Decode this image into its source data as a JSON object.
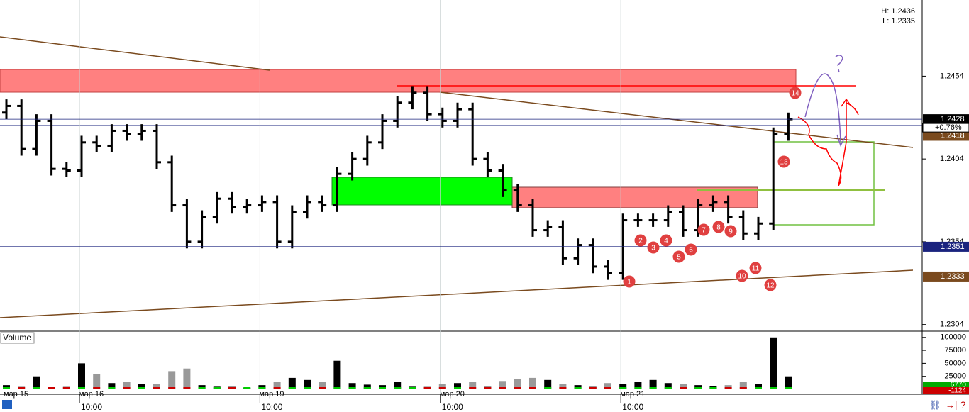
{
  "header": {
    "high_label": "H: 1.2436",
    "low_label": "L: 1.2335"
  },
  "chart_data": {
    "type": "ohlc",
    "categories": [
      "мар 15",
      null,
      null,
      null,
      null,
      "мар 16",
      null,
      null,
      null,
      null,
      null,
      null,
      null,
      null,
      null,
      null,
      null,
      "мар 19",
      null,
      null,
      null,
      null,
      null,
      null,
      null,
      null,
      null,
      null,
      null,
      "мар 20",
      null,
      null,
      null,
      null,
      null,
      null,
      null,
      null,
      null,
      null,
      null,
      "мар 21",
      null,
      null,
      null,
      null,
      null,
      null,
      null,
      null,
      null,
      null,
      null
    ],
    "time_labels": [
      null,
      null,
      null,
      null,
      null,
      "10:00",
      null,
      null,
      null,
      null,
      null,
      null,
      null,
      null,
      null,
      null,
      null,
      "10:00",
      null,
      null,
      null,
      null,
      null,
      null,
      null,
      null,
      null,
      null,
      null,
      "10:00",
      null,
      null,
      null,
      null,
      null,
      null,
      null,
      null,
      null,
      null,
      null,
      "10:00",
      null,
      null,
      null,
      null,
      null,
      null,
      null,
      null,
      null,
      null,
      null
    ],
    "open": [
      1.2432,
      1.2436,
      1.241,
      1.2427,
      1.2398,
      1.2397,
      1.2414,
      1.2412,
      1.2421,
      1.2419,
      1.2421,
      1.2402,
      1.2376,
      1.2354,
      1.2369,
      1.238,
      1.2375,
      1.2376,
      1.2378,
      1.2354,
      1.2372,
      1.2378,
      1.2376,
      1.2395,
      1.2404,
      1.2414,
      1.2427,
      1.2438,
      1.2444,
      1.2431,
      1.2427,
      1.2434,
      1.2404,
      1.2397,
      1.2385,
      1.2376,
      1.2361,
      1.2363,
      1.2344,
      1.2352,
      1.2339,
      1.2335,
      1.2367,
      1.2367,
      1.2367,
      1.2372,
      1.2361,
      1.2376,
      1.2378,
      1.2369,
      1.2359,
      1.2365,
      1.2419
    ],
    "high": [
      1.244,
      1.244,
      1.2431,
      1.2431,
      1.2402,
      1.2418,
      1.2418,
      1.2425,
      1.2425,
      1.2425,
      1.2425,
      1.2406,
      1.238,
      1.2373,
      1.2384,
      1.2384,
      1.238,
      1.2382,
      1.2382,
      1.2376,
      1.2382,
      1.2382,
      1.2399,
      1.2408,
      1.2418,
      1.2431,
      1.2442,
      1.2448,
      1.2448,
      1.2435,
      1.2438,
      1.2438,
      1.2408,
      1.2401,
      1.2389,
      1.238,
      1.2367,
      1.2367,
      1.2356,
      1.2356,
      1.2343,
      1.2371,
      1.2371,
      1.2371,
      1.2376,
      1.2376,
      1.238,
      1.2382,
      1.2382,
      1.2373,
      1.2369,
      1.2423,
      1.2432
    ],
    "low": [
      1.2428,
      1.2406,
      1.2406,
      1.2394,
      1.2393,
      1.2393,
      1.2408,
      1.2408,
      1.2415,
      1.2415,
      1.2398,
      1.2372,
      1.235,
      1.235,
      1.2365,
      1.2371,
      1.2371,
      1.2372,
      1.235,
      1.235,
      1.2368,
      1.2372,
      1.2372,
      1.2391,
      1.24,
      1.241,
      1.2423,
      1.2434,
      1.2427,
      1.2423,
      1.2423,
      1.24,
      1.2393,
      1.2381,
      1.2372,
      1.2357,
      1.2357,
      1.234,
      1.234,
      1.2335,
      1.2331,
      1.2331,
      1.2363,
      1.2363,
      1.2363,
      1.2357,
      1.2357,
      1.2372,
      1.2365,
      1.2355,
      1.2355,
      1.2361,
      1.2415
    ],
    "close": [
      1.2436,
      1.241,
      1.2427,
      1.2398,
      1.2397,
      1.2414,
      1.2412,
      1.2421,
      1.2419,
      1.2421,
      1.2402,
      1.2376,
      1.2354,
      1.2369,
      1.238,
      1.2375,
      1.2376,
      1.2378,
      1.2354,
      1.2372,
      1.2378,
      1.2376,
      1.2395,
      1.2404,
      1.2414,
      1.2427,
      1.2438,
      1.2444,
      1.2431,
      1.2427,
      1.2434,
      1.2404,
      1.2397,
      1.2385,
      1.2376,
      1.2361,
      1.2363,
      1.2344,
      1.2352,
      1.2339,
      1.2335,
      1.2367,
      1.2367,
      1.2367,
      1.2372,
      1.2361,
      1.2376,
      1.2378,
      1.2369,
      1.2359,
      1.2365,
      1.2419,
      1.2428
    ],
    "color": "#000000",
    "ylim": [
      1.23,
      1.25
    ],
    "yticks": [
      1.2454,
      1.2404,
      1.2354,
      1.2304
    ],
    "price_tags": [
      1.2428,
      1.2418,
      1.2351,
      1.2333
    ],
    "price_tag_colors": [
      "#000000",
      "#7a4a1e",
      "#1a237e",
      "#7a4a1e"
    ],
    "change_label": "+0.76%",
    "markers": [
      1,
      2,
      3,
      4,
      5,
      6,
      7,
      8,
      9,
      10,
      11,
      12,
      13,
      14
    ],
    "volume": {
      "label": "Volume",
      "values": [
        8000,
        5000,
        25000,
        4000,
        5000,
        50000,
        30000,
        12000,
        14000,
        10000,
        10000,
        35000,
        40000,
        8000,
        5000,
        6000,
        3000,
        8000,
        15000,
        22000,
        18000,
        14000,
        55000,
        12000,
        9000,
        8000,
        14000,
        5000,
        5000,
        10000,
        12000,
        14000,
        6000,
        16000,
        20000,
        22000,
        18000,
        10000,
        8000,
        6000,
        12000,
        10000,
        15000,
        18000,
        12000,
        10000,
        8000,
        6000,
        8000,
        14000,
        10000,
        100000,
        25000
      ],
      "ylim": [
        0,
        112000
      ],
      "yticks": [
        25000,
        50000,
        75000,
        100000
      ],
      "tags": [
        6770,
        -1124
      ],
      "tag_colors": [
        "#00aa00",
        "#cc0000"
      ]
    }
  }
}
